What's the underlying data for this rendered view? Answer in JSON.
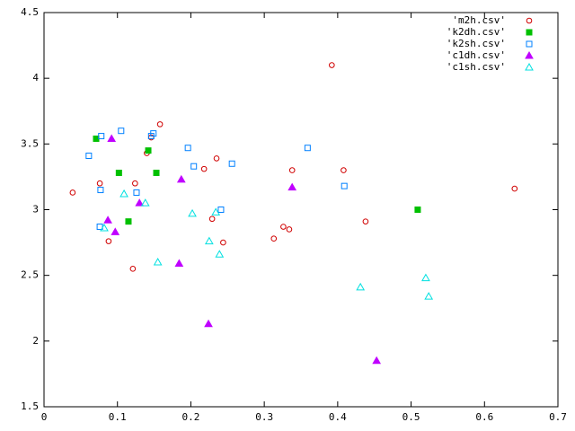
{
  "chart_data": {
    "type": "scatter",
    "xlim": [
      0,
      0.7
    ],
    "xticks": [
      0,
      0.1,
      0.2,
      0.3,
      0.4,
      0.5,
      0.6,
      0.7
    ],
    "ylim": [
      1.5,
      4.5
    ],
    "yticks": [
      1.5,
      2,
      2.5,
      3,
      3.5,
      4,
      4.5
    ],
    "legend": "top-right",
    "series": [
      {
        "name": "'m2h.csv'",
        "color": "#d00000",
        "marker": "circle",
        "x": [
          0.039,
          0.076,
          0.088,
          0.124,
          0.121,
          0.14,
          0.158,
          0.146,
          0.218,
          0.235,
          0.229,
          0.244,
          0.313,
          0.326,
          0.334,
          0.338,
          0.392,
          0.408,
          0.438,
          0.641
        ],
        "values": [
          3.13,
          3.2,
          2.76,
          3.2,
          2.55,
          3.43,
          3.65,
          3.55,
          3.31,
          3.39,
          2.93,
          2.75,
          2.78,
          2.87,
          2.85,
          3.3,
          4.1,
          3.3,
          2.91,
          3.16
        ]
      },
      {
        "name": "'k2dh.csv'",
        "color": "#00c000",
        "marker": "square-filled",
        "x": [
          0.071,
          0.102,
          0.115,
          0.142,
          0.153,
          0.509
        ],
        "values": [
          3.54,
          3.28,
          2.91,
          3.45,
          3.28,
          3.0
        ]
      },
      {
        "name": "'k2sh.csv'",
        "color": "#0080ff",
        "marker": "square",
        "x": [
          0.061,
          0.078,
          0.077,
          0.076,
          0.105,
          0.126,
          0.149,
          0.146,
          0.196,
          0.204,
          0.241,
          0.256,
          0.359,
          0.409
        ],
        "values": [
          3.41,
          3.56,
          3.15,
          2.87,
          3.6,
          3.13,
          3.58,
          3.56,
          3.47,
          3.33,
          3.0,
          3.35,
          3.47,
          3.18
        ]
      },
      {
        "name": "'c1dh.csv'",
        "color": "#c000ff",
        "marker": "triangle-filled",
        "x": [
          0.087,
          0.092,
          0.097,
          0.13,
          0.187,
          0.184,
          0.224,
          0.338,
          0.453
        ],
        "values": [
          2.92,
          3.54,
          2.83,
          3.05,
          3.23,
          2.59,
          2.13,
          3.17,
          1.85
        ]
      },
      {
        "name": "'c1sh.csv'",
        "color": "#00e0e0",
        "marker": "triangle",
        "x": [
          0.082,
          0.109,
          0.138,
          0.155,
          0.202,
          0.225,
          0.234,
          0.239,
          0.431,
          0.52,
          0.524
        ],
        "values": [
          2.86,
          3.12,
          3.05,
          2.6,
          2.97,
          2.76,
          2.98,
          2.66,
          2.41,
          2.48,
          2.34
        ]
      }
    ]
  }
}
